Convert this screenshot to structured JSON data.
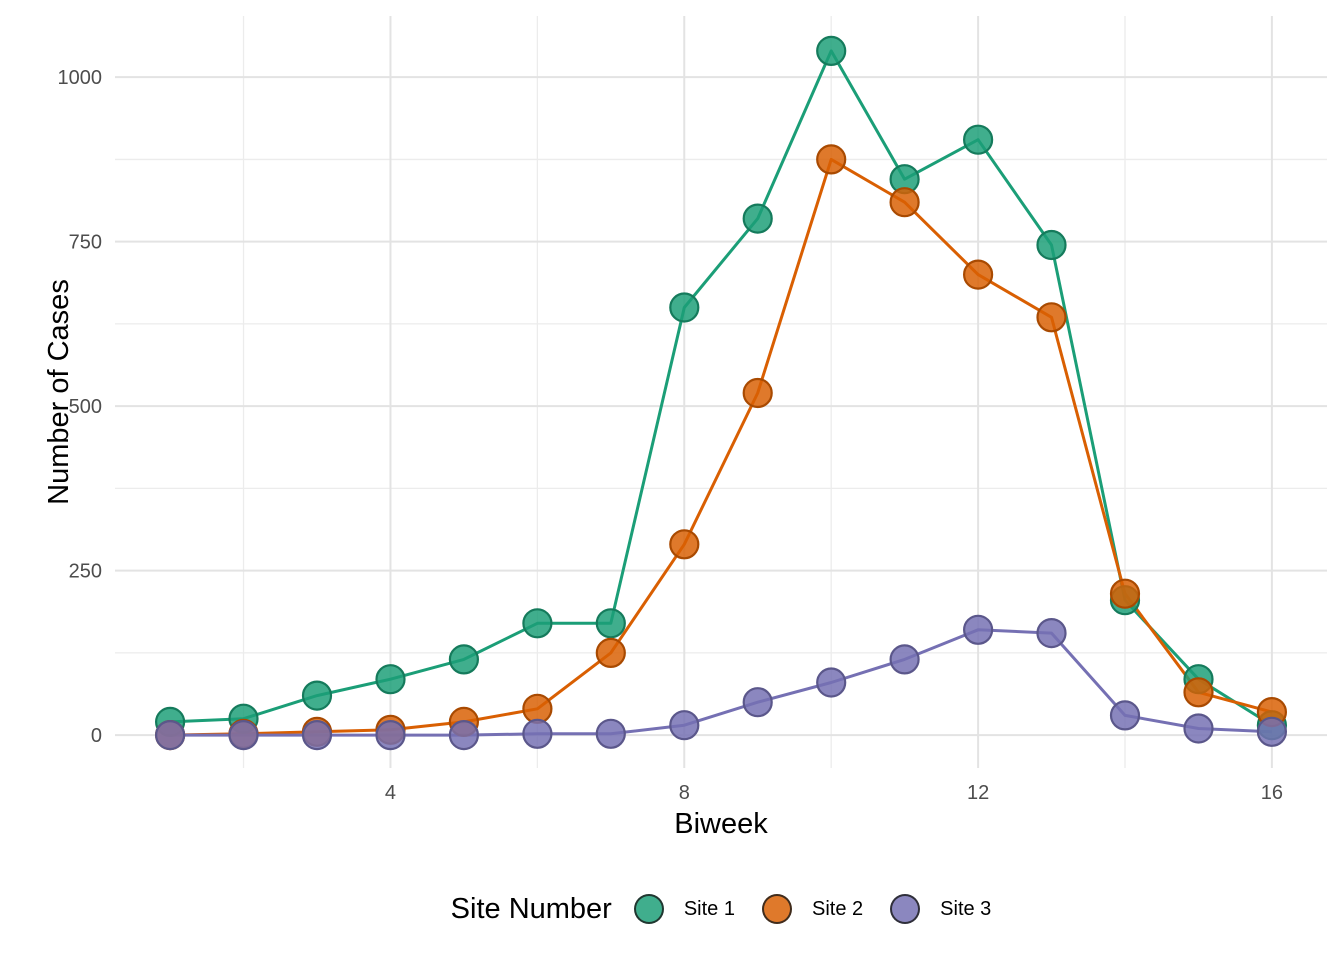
{
  "chart_data": {
    "type": "line",
    "title": "",
    "xlabel": "Biweek",
    "ylabel": "Number of Cases",
    "x": [
      1,
      2,
      3,
      4,
      5,
      6,
      7,
      8,
      9,
      10,
      11,
      12,
      13,
      14,
      15,
      16
    ],
    "series": [
      {
        "name": "Site 1",
        "color": "#1B9E77",
        "values": [
          20,
          25,
          60,
          85,
          115,
          170,
          170,
          650,
          785,
          1040,
          845,
          905,
          745,
          205,
          85,
          15
        ]
      },
      {
        "name": "Site 2",
        "color": "#D95F02",
        "values": [
          0,
          2,
          5,
          8,
          20,
          40,
          125,
          290,
          520,
          875,
          810,
          700,
          635,
          215,
          65,
          35
        ]
      },
      {
        "name": "Site 3",
        "color": "#7570B3",
        "values": [
          0,
          0,
          0,
          0,
          0,
          2,
          2,
          15,
          50,
          80,
          115,
          160,
          155,
          30,
          10,
          5
        ]
      }
    ],
    "x_ticks": {
      "major": [
        4,
        8,
        12,
        16
      ],
      "minor": [
        2,
        6,
        10,
        14
      ],
      "labels": [
        "4",
        "8",
        "12",
        "16"
      ]
    },
    "y_ticks": {
      "major": [
        0,
        250,
        500,
        750,
        1000
      ],
      "minor": [
        125,
        375,
        625,
        875
      ],
      "labels": [
        "0",
        "250",
        "500",
        "750",
        "1000"
      ]
    },
    "xlim": [
      0.25,
      16.75
    ],
    "ylim": [
      -50,
      1093
    ],
    "grid": true,
    "legend_position": "bottom",
    "legend": {
      "title": "Site Number"
    },
    "colors": {
      "background": "#FFFFFF",
      "grid_major": "#E3E3E3",
      "grid_minor": "#ECECEC",
      "tick_label": "#4D4D4D",
      "axis_title": "#000000",
      "point_fill_alpha": 0.84,
      "point_stroke_darken": 0.78
    }
  }
}
